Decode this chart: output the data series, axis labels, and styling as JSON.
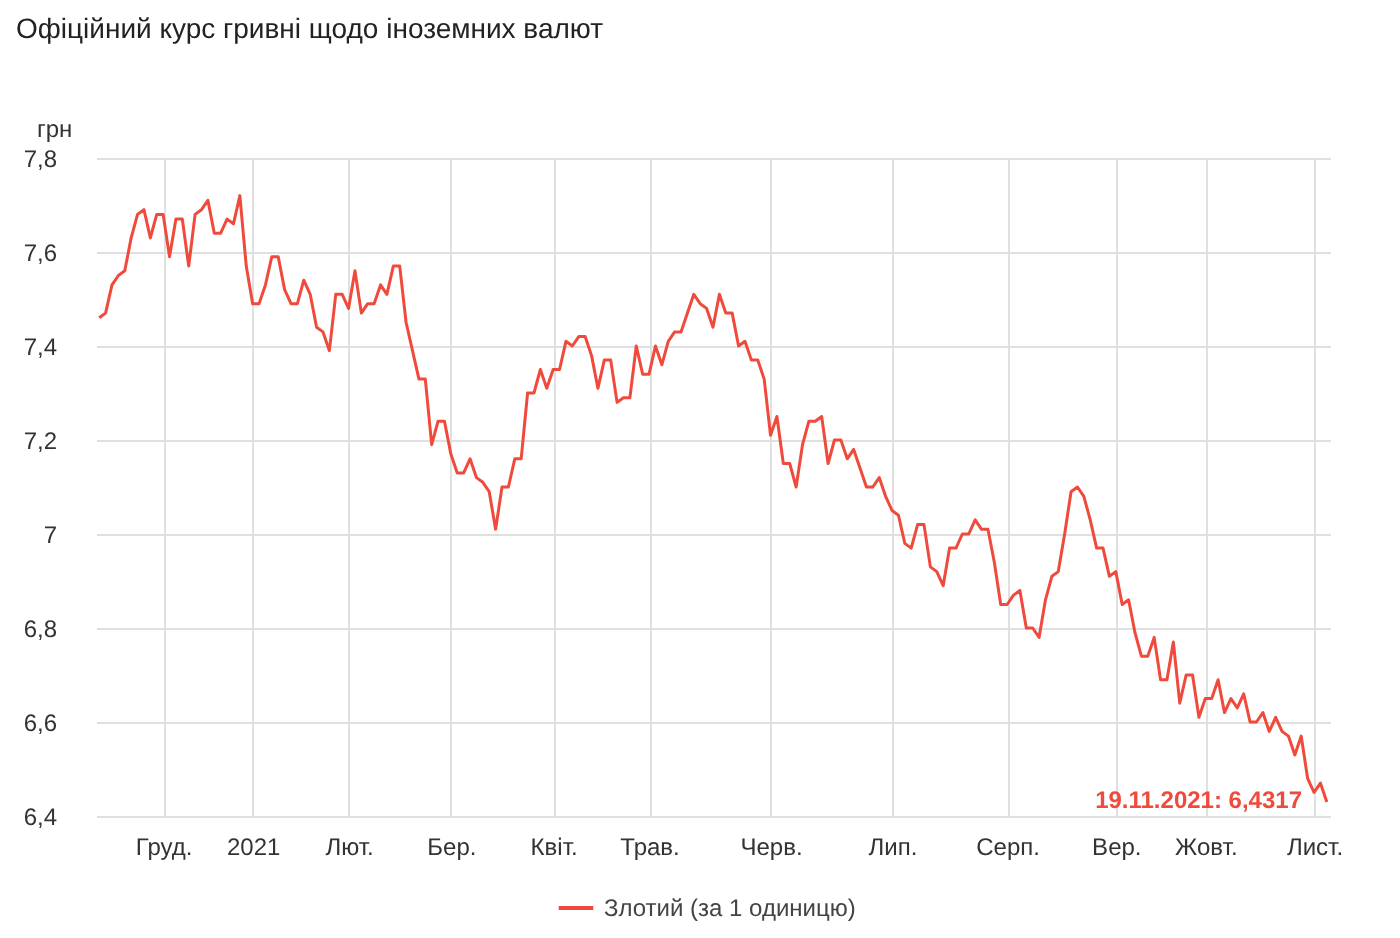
{
  "chart_data": {
    "type": "line",
    "title": "Офіційний курс гривні щодо іноземних валют",
    "ylabel": "грн",
    "categories": [
      null,
      null,
      null,
      null,
      null,
      null,
      null,
      null,
      null,
      null,
      "Груд.",
      null,
      null,
      null,
      null,
      null,
      null,
      null,
      null,
      null,
      null,
      null,
      null,
      null,
      "2021",
      null,
      null,
      null,
      null,
      null,
      null,
      null,
      null,
      null,
      null,
      null,
      null,
      null,
      null,
      "Лют.",
      null,
      null,
      null,
      null,
      null,
      null,
      null,
      null,
      null,
      null,
      null,
      null,
      null,
      null,
      null,
      "Бер.",
      null,
      null,
      null,
      null,
      null,
      null,
      null,
      null,
      null,
      null,
      null,
      null,
      null,
      null,
      null,
      "Квіт.",
      null,
      null,
      null,
      null,
      null,
      null,
      null,
      null,
      null,
      null,
      null,
      null,
      null,
      null,
      "Трав.",
      null,
      null,
      null,
      null,
      null,
      null,
      null,
      null,
      null,
      null,
      null,
      null,
      null,
      null,
      null,
      null,
      null,
      null,
      "Черв.",
      null,
      null,
      null,
      null,
      null,
      null,
      null,
      null,
      null,
      null,
      null,
      null,
      null,
      null,
      null,
      null,
      null,
      null,
      "Лип.",
      null,
      null,
      null,
      null,
      null,
      null,
      null,
      null,
      null,
      null,
      null,
      null,
      null,
      null,
      null,
      null,
      null,
      "Серп.",
      null,
      null,
      null,
      null,
      null,
      null,
      null,
      null,
      null,
      null,
      null,
      null,
      null,
      null,
      null,
      null,
      "Вер.",
      null,
      null,
      null,
      null,
      null,
      null,
      null,
      null,
      null,
      null,
      null,
      null,
      null,
      "Жовт.",
      null,
      null,
      null,
      null,
      null,
      null,
      null,
      null,
      null,
      null,
      null,
      null,
      null,
      null,
      null,
      null,
      "Лист.",
      null,
      null
    ],
    "series": [
      {
        "name": "Злотий (за 1 одиницю)",
        "color": "#f04a3d",
        "values": [
          7.46,
          7.47,
          7.53,
          7.55,
          7.56,
          7.63,
          7.68,
          7.69,
          7.63,
          7.68,
          7.68,
          7.59,
          7.67,
          7.67,
          7.57,
          7.68,
          7.69,
          7.71,
          7.64,
          7.64,
          7.67,
          7.66,
          7.72,
          7.57,
          7.49,
          7.49,
          7.53,
          7.59,
          7.59,
          7.52,
          7.49,
          7.49,
          7.54,
          7.51,
          7.44,
          7.43,
          7.39,
          7.51,
          7.51,
          7.48,
          7.56,
          7.47,
          7.49,
          7.49,
          7.53,
          7.51,
          7.57,
          7.57,
          7.45,
          7.39,
          7.33,
          7.33,
          7.19,
          7.24,
          7.24,
          7.17,
          7.13,
          7.13,
          7.16,
          7.12,
          7.11,
          7.09,
          7.01,
          7.1,
          7.1,
          7.16,
          7.16,
          7.3,
          7.3,
          7.35,
          7.31,
          7.35,
          7.35,
          7.41,
          7.4,
          7.42,
          7.42,
          7.38,
          7.31,
          7.37,
          7.37,
          7.28,
          7.29,
          7.29,
          7.4,
          7.34,
          7.34,
          7.4,
          7.36,
          7.41,
          7.43,
          7.43,
          7.47,
          7.51,
          7.49,
          7.48,
          7.44,
          7.51,
          7.47,
          7.47,
          7.4,
          7.41,
          7.37,
          7.37,
          7.33,
          7.21,
          7.25,
          7.15,
          7.15,
          7.1,
          7.19,
          7.24,
          7.24,
          7.25,
          7.15,
          7.2,
          7.2,
          7.16,
          7.18,
          7.14,
          7.1,
          7.1,
          7.12,
          7.08,
          7.05,
          7.04,
          6.98,
          6.97,
          7.02,
          7.02,
          6.93,
          6.92,
          6.89,
          6.97,
          6.97,
          7.0,
          7.0,
          7.03,
          7.01,
          7.01,
          6.94,
          6.85,
          6.85,
          6.87,
          6.88,
          6.8,
          6.8,
          6.78,
          6.86,
          6.91,
          6.92,
          7.0,
          7.09,
          7.1,
          7.08,
          7.03,
          6.97,
          6.97,
          6.91,
          6.92,
          6.85,
          6.86,
          6.79,
          6.74,
          6.74,
          6.78,
          6.69,
          6.69,
          6.77,
          6.64,
          6.7,
          6.7,
          6.61,
          6.65,
          6.65,
          6.69,
          6.62,
          6.65,
          6.63,
          6.66,
          6.6,
          6.6,
          6.62,
          6.58,
          6.61,
          6.58,
          6.57,
          6.53,
          6.57,
          6.48,
          6.45,
          6.47,
          6.43
        ]
      }
    ],
    "ylim": [
      6.4,
      7.8
    ],
    "yticks": [
      {
        "value": 6.4,
        "label": "6,4"
      },
      {
        "value": 6.6,
        "label": "6,6"
      },
      {
        "value": 6.8,
        "label": "6,8"
      },
      {
        "value": 7,
        "label": "7"
      },
      {
        "value": 7.2,
        "label": "7,2"
      },
      {
        "value": 7.4,
        "label": "7,4"
      },
      {
        "value": 7.6,
        "label": "7,6"
      },
      {
        "value": 7.8,
        "label": "7,8"
      }
    ],
    "grid": true,
    "legend": "bottom",
    "line_style": "solid",
    "marker": "none",
    "annotations": [
      "19.11.2021: 6,4317"
    ]
  }
}
